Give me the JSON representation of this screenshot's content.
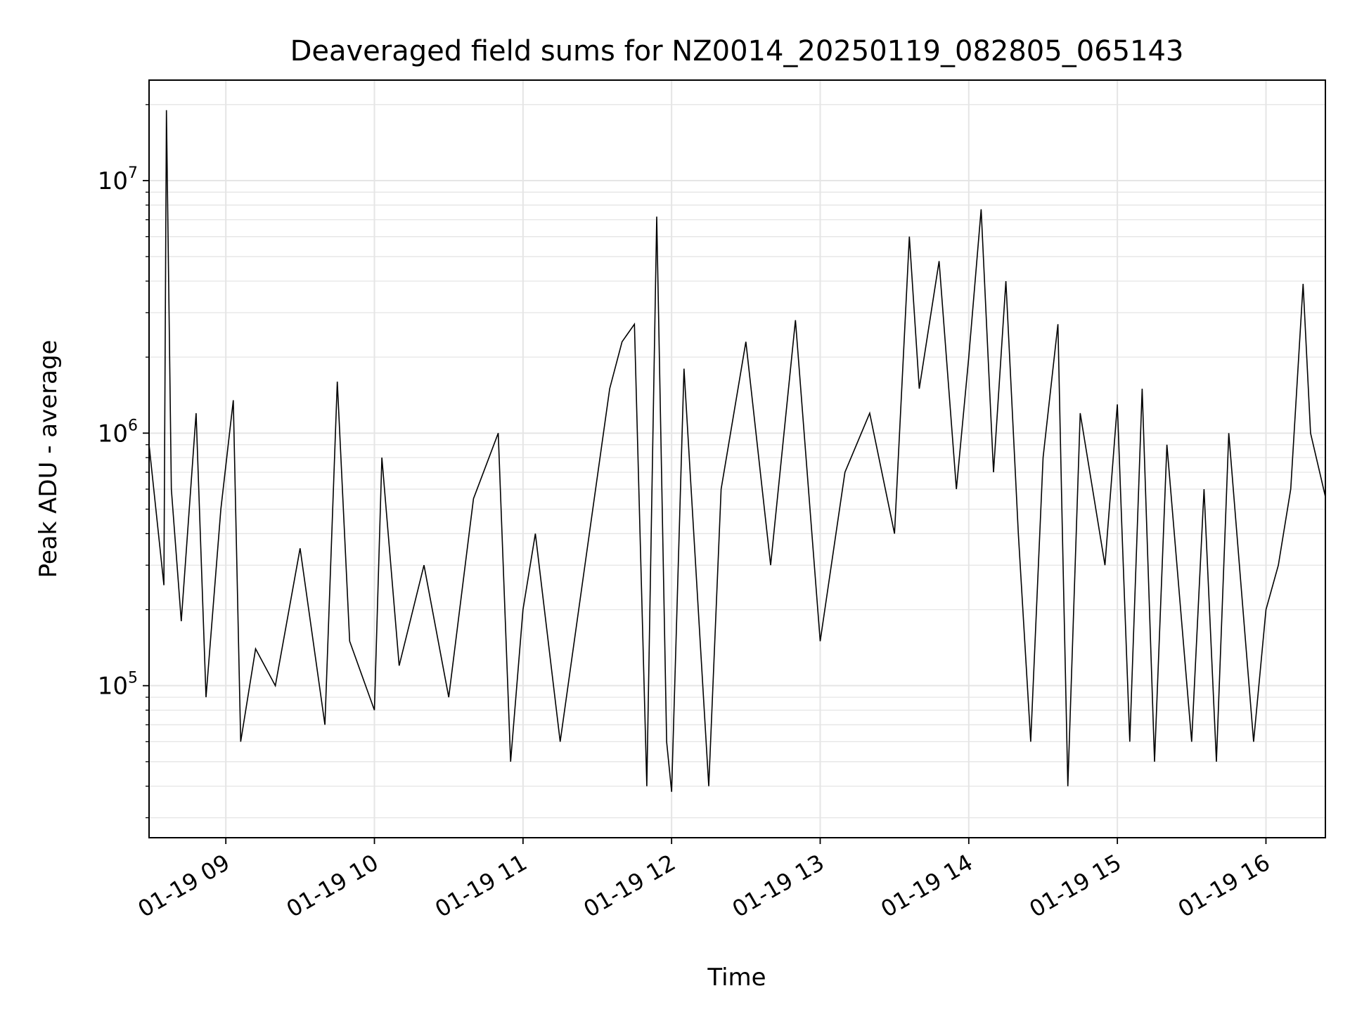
{
  "chart_data": {
    "type": "line",
    "title": "Deaveraged field sums for NZ0014_20250119_082805_065143",
    "xlabel": "Time",
    "ylabel": "Peak ADU - average",
    "x_axis_kind": "datetime",
    "xlim": [
      "01-19 08:29",
      "01-19 16:24"
    ],
    "x_ticks": [
      "01-19 09",
      "01-19 10",
      "01-19 11",
      "01-19 12",
      "01-19 13",
      "01-19 14",
      "01-19 15",
      "01-19 16"
    ],
    "y_scale": "log",
    "ylim": [
      25000,
      25000000
    ],
    "y_ticks": [
      {
        "base": "10",
        "exp": "5",
        "value": 100000
      },
      {
        "base": "10",
        "exp": "6",
        "value": 1000000
      },
      {
        "base": "10",
        "exp": "7",
        "value": 10000000
      }
    ],
    "grid": true,
    "legend": "none",
    "colors": {
      "line": "#000000",
      "grid": "#e5e5e5",
      "axes": "#000000"
    },
    "series": [
      {
        "points": [
          [
            "01-19 08:29",
            900000
          ],
          [
            "01-19 08:35",
            250000
          ],
          [
            "01-19 08:36",
            19000000
          ],
          [
            "01-19 08:38",
            600000
          ],
          [
            "01-19 08:42",
            180000
          ],
          [
            "01-19 08:48",
            1200000
          ],
          [
            "01-19 08:52",
            90000
          ],
          [
            "01-19 08:58",
            500000
          ],
          [
            "01-19 09:03",
            1350000
          ],
          [
            "01-19 09:06",
            60000
          ],
          [
            "01-19 09:12",
            140000
          ],
          [
            "01-19 09:20",
            100000
          ],
          [
            "01-19 09:30",
            350000
          ],
          [
            "01-19 09:40",
            70000
          ],
          [
            "01-19 09:45",
            1600000
          ],
          [
            "01-19 09:50",
            150000
          ],
          [
            "01-19 10:00",
            80000
          ],
          [
            "01-19 10:03",
            800000
          ],
          [
            "01-19 10:10",
            120000
          ],
          [
            "01-19 10:20",
            300000
          ],
          [
            "01-19 10:30",
            90000
          ],
          [
            "01-19 10:40",
            550000
          ],
          [
            "01-19 10:50",
            1000000
          ],
          [
            "01-19 10:55",
            50000
          ],
          [
            "01-19 11:00",
            200000
          ],
          [
            "01-19 11:05",
            400000
          ],
          [
            "01-19 11:15",
            60000
          ],
          [
            "01-19 11:25",
            300000
          ],
          [
            "01-19 11:35",
            1500000
          ],
          [
            "01-19 11:40",
            2300000
          ],
          [
            "01-19 11:45",
            2700000
          ],
          [
            "01-19 11:50",
            40000
          ],
          [
            "01-19 11:54",
            7200000
          ],
          [
            "01-19 11:58",
            60000
          ],
          [
            "01-19 12:00",
            38000
          ],
          [
            "01-19 12:05",
            1800000
          ],
          [
            "01-19 12:15",
            40000
          ],
          [
            "01-19 12:20",
            600000
          ],
          [
            "01-19 12:30",
            2300000
          ],
          [
            "01-19 12:40",
            300000
          ],
          [
            "01-19 12:50",
            2800000
          ],
          [
            "01-19 13:00",
            150000
          ],
          [
            "01-19 13:10",
            700000
          ],
          [
            "01-19 13:20",
            1200000
          ],
          [
            "01-19 13:30",
            400000
          ],
          [
            "01-19 13:36",
            6000000
          ],
          [
            "01-19 13:40",
            1500000
          ],
          [
            "01-19 13:48",
            4800000
          ],
          [
            "01-19 13:55",
            600000
          ],
          [
            "01-19 14:00",
            2000000
          ],
          [
            "01-19 14:05",
            7700000
          ],
          [
            "01-19 14:10",
            700000
          ],
          [
            "01-19 14:15",
            4000000
          ],
          [
            "01-19 14:20",
            400000
          ],
          [
            "01-19 14:25",
            60000
          ],
          [
            "01-19 14:30",
            800000
          ],
          [
            "01-19 14:36",
            2700000
          ],
          [
            "01-19 14:40",
            40000
          ],
          [
            "01-19 14:45",
            1200000
          ],
          [
            "01-19 14:55",
            300000
          ],
          [
            "01-19 15:00",
            1300000
          ],
          [
            "01-19 15:05",
            60000
          ],
          [
            "01-19 15:10",
            1500000
          ],
          [
            "01-19 15:15",
            50000
          ],
          [
            "01-19 15:20",
            900000
          ],
          [
            "01-19 15:30",
            60000
          ],
          [
            "01-19 15:35",
            600000
          ],
          [
            "01-19 15:40",
            50000
          ],
          [
            "01-19 15:45",
            1000000
          ],
          [
            "01-19 15:55",
            60000
          ],
          [
            "01-19 16:00",
            200000
          ],
          [
            "01-19 16:05",
            300000
          ],
          [
            "01-19 16:10",
            600000
          ],
          [
            "01-19 16:15",
            3900000
          ],
          [
            "01-19 16:18",
            1000000
          ],
          [
            "01-19 16:24",
            560000
          ]
        ]
      }
    ]
  }
}
